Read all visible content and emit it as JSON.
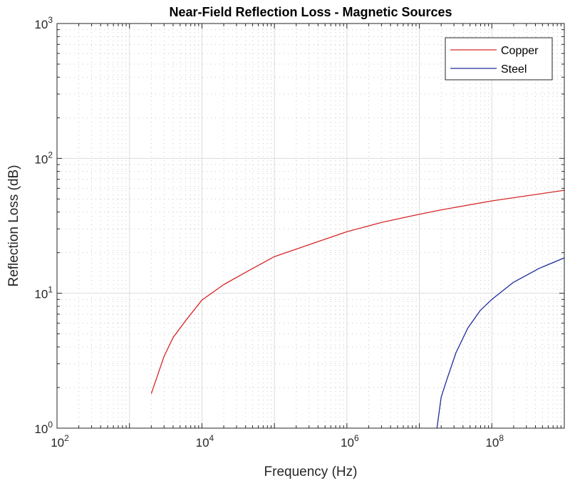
{
  "chart_data": {
    "type": "line",
    "title": "Near-Field Reflection Loss - Magnetic Sources",
    "xlabel": "Frequency (Hz)",
    "ylabel": "Reflection Loss (dB)",
    "xscale": "log",
    "yscale": "log",
    "xlim": [
      100,
      1000000000
    ],
    "ylim": [
      1,
      1000
    ],
    "x_ticks": [
      {
        "base": "10",
        "exp": "2",
        "value": 100
      },
      {
        "base": "10",
        "exp": "4",
        "value": 10000
      },
      {
        "base": "10",
        "exp": "6",
        "value": 1000000
      },
      {
        "base": "10",
        "exp": "8",
        "value": 100000000
      }
    ],
    "y_ticks": [
      {
        "base": "10",
        "exp": "0",
        "value": 1
      },
      {
        "base": "10",
        "exp": "1",
        "value": 10
      },
      {
        "base": "10",
        "exp": "2",
        "value": 100
      },
      {
        "base": "10",
        "exp": "3",
        "value": 1000
      }
    ],
    "grid": {
      "major": true,
      "minor": true
    },
    "legend": {
      "placement": "top-right"
    },
    "series": [
      {
        "name": "Copper",
        "color": "#d62728",
        "x": [
          2000,
          3000,
          4000,
          6000,
          10000,
          20000,
          40000,
          100000,
          300000,
          1000000,
          3000000,
          10000000,
          20000000,
          100000000,
          1000000000
        ],
        "y": [
          1.8,
          3.4,
          4.7,
          6.3,
          8.9,
          11.6,
          14.3,
          18.7,
          22.9,
          28.6,
          33.5,
          38.5,
          41.5,
          48.4,
          58
        ]
      },
      {
        "name": "Steel",
        "color": "#1f2a9c",
        "x": [
          17500000,
          20000000,
          23800000,
          32000000,
          46900000,
          70000000,
          100000000,
          196000000,
          450000000,
          1000000000
        ],
        "y": [
          1.0,
          1.7,
          2.27,
          3.63,
          5.55,
          7.5,
          9.0,
          12.0,
          15.3,
          18.3
        ]
      }
    ]
  }
}
